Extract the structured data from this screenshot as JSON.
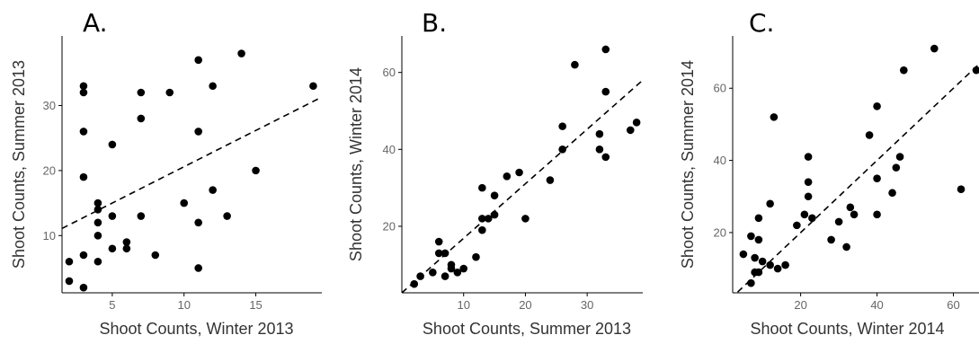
{
  "chart_data": [
    {
      "type": "scatter",
      "panel": "A.",
      "xlabel": "Shoot Counts, Winter 2013",
      "ylabel": "Shoot Counts, Summer 2013",
      "xlim": [
        1.5,
        19.6
      ],
      "ylim": [
        1.2,
        40.7
      ],
      "xticks": [
        5,
        10,
        15
      ],
      "yticks": [
        10,
        20,
        30
      ],
      "grid": false,
      "fit_line": [
        [
          1.5,
          11.1
        ],
        [
          19.6,
          31.3
        ]
      ],
      "points": [
        [
          2,
          6
        ],
        [
          2,
          3
        ],
        [
          3,
          33
        ],
        [
          3,
          32
        ],
        [
          3,
          26
        ],
        [
          3,
          19
        ],
        [
          3,
          7
        ],
        [
          3,
          2
        ],
        [
          4,
          15
        ],
        [
          4,
          14
        ],
        [
          4,
          12
        ],
        [
          4,
          10
        ],
        [
          4,
          6
        ],
        [
          5,
          24
        ],
        [
          5,
          13
        ],
        [
          5,
          8
        ],
        [
          6,
          9
        ],
        [
          6,
          8
        ],
        [
          7,
          32
        ],
        [
          7,
          28
        ],
        [
          7,
          13
        ],
        [
          8,
          7
        ],
        [
          9,
          32
        ],
        [
          10,
          15
        ],
        [
          11,
          37
        ],
        [
          11,
          26
        ],
        [
          11,
          12
        ],
        [
          11,
          5
        ],
        [
          12,
          33
        ],
        [
          12,
          17
        ],
        [
          13,
          13
        ],
        [
          14,
          38
        ],
        [
          15,
          20
        ],
        [
          19,
          33
        ]
      ]
    },
    {
      "type": "scatter",
      "panel": "B.",
      "xlabel": "Shoot Counts, Summer 2013",
      "ylabel": "Shoot Counts, Winter 2014",
      "xlim": [
        0,
        39
      ],
      "ylim": [
        2.7,
        69.5
      ],
      "xticks": [
        10,
        20,
        30
      ],
      "yticks": [
        20,
        40,
        60
      ],
      "grid": false,
      "fit_line": [
        [
          0,
          2.7
        ],
        [
          39,
          58
        ]
      ],
      "points": [
        [
          2,
          5
        ],
        [
          3,
          7
        ],
        [
          5,
          8
        ],
        [
          6,
          16
        ],
        [
          6,
          13
        ],
        [
          7,
          13
        ],
        [
          7,
          7
        ],
        [
          8,
          10
        ],
        [
          8,
          9
        ],
        [
          9,
          8
        ],
        [
          10,
          9
        ],
        [
          12,
          12
        ],
        [
          13,
          30
        ],
        [
          13,
          22
        ],
        [
          13,
          19
        ],
        [
          14,
          22
        ],
        [
          15,
          28
        ],
        [
          15,
          23
        ],
        [
          17,
          33
        ],
        [
          19,
          34
        ],
        [
          20,
          22
        ],
        [
          24,
          32
        ],
        [
          26,
          46
        ],
        [
          26,
          40
        ],
        [
          28,
          62
        ],
        [
          32,
          44
        ],
        [
          32,
          40
        ],
        [
          33,
          66
        ],
        [
          33,
          55
        ],
        [
          33,
          38
        ],
        [
          37,
          45
        ],
        [
          38,
          47
        ]
      ]
    },
    {
      "type": "scatter",
      "panel": "C.",
      "xlabel": "Shoot Counts, Winter 2014",
      "ylabel": "Shoot Counts, Summer 2014",
      "xlim": [
        2.2,
        66.7
      ],
      "ylim": [
        3.3,
        74.5
      ],
      "xticks": [
        20,
        40,
        60
      ],
      "yticks": [
        20,
        40,
        60
      ],
      "grid": false,
      "fit_line": [
        [
          3.5,
          3.5
        ],
        [
          66.7,
          66.7
        ]
      ],
      "points": [
        [
          5,
          14
        ],
        [
          7,
          19
        ],
        [
          7,
          6
        ],
        [
          8,
          13
        ],
        [
          8,
          9
        ],
        [
          9,
          24
        ],
        [
          9,
          18
        ],
        [
          9,
          9
        ],
        [
          10,
          12
        ],
        [
          12,
          28
        ],
        [
          12,
          11
        ],
        [
          13,
          52
        ],
        [
          14,
          10
        ],
        [
          16,
          11
        ],
        [
          19,
          22
        ],
        [
          21,
          25
        ],
        [
          22,
          41
        ],
        [
          22,
          34
        ],
        [
          22,
          30
        ],
        [
          23,
          24
        ],
        [
          28,
          18
        ],
        [
          30,
          23
        ],
        [
          32,
          16
        ],
        [
          33,
          27
        ],
        [
          34,
          25
        ],
        [
          38,
          47
        ],
        [
          40,
          55
        ],
        [
          40,
          35
        ],
        [
          40,
          25
        ],
        [
          44,
          31
        ],
        [
          45,
          38
        ],
        [
          46,
          41
        ],
        [
          47,
          65
        ],
        [
          55,
          71
        ],
        [
          62,
          32
        ],
        [
          66,
          65
        ]
      ]
    }
  ]
}
